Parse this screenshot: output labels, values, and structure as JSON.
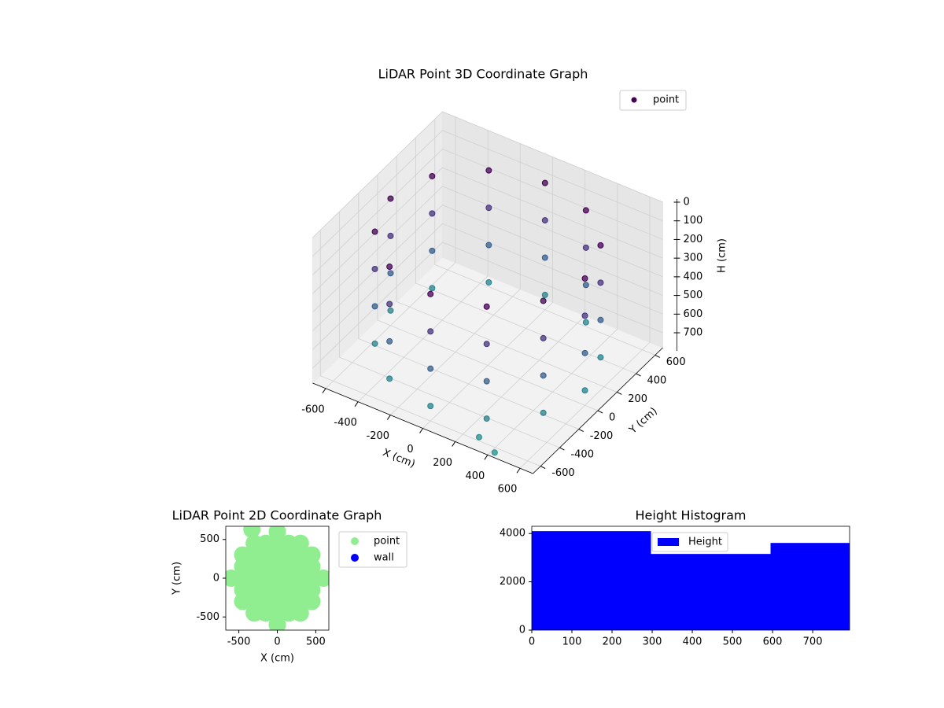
{
  "chart_data": [
    {
      "type": "scatter3d",
      "title": "LiDAR Point 3D Coordinate Graph",
      "x_label": "X (cm)",
      "y_label": "Y (cm)",
      "z_label": "H (cm)",
      "xlim": [
        -680,
        680
      ],
      "ylim": [
        -680,
        680
      ],
      "zlim": [
        0,
        780
      ],
      "z_inverted": true,
      "xticks": [
        -600,
        -400,
        -200,
        0,
        200,
        400,
        600
      ],
      "yticks": [
        -600,
        -400,
        -200,
        0,
        200,
        400,
        600
      ],
      "zticks": [
        0,
        100,
        200,
        300,
        400,
        500,
        600,
        700
      ],
      "colormap": "viridis",
      "legend": "upper right",
      "grid": true,
      "series": [
        {
          "name": "point",
          "color": "#440154",
          "x": [
            600,
            520,
            300,
            0,
            -300,
            -520,
            -600,
            -520,
            -300,
            0,
            300,
            520,
            600,
            520,
            300,
            0,
            -300,
            -520,
            -600,
            -520,
            -300,
            0,
            300,
            520,
            600,
            520,
            300,
            0,
            -300,
            -520,
            -600,
            -520,
            -300,
            0,
            300,
            520,
            600,
            520,
            300,
            0,
            -300,
            -520,
            -600,
            -520,
            -300,
            0,
            300,
            520,
            420,
            300
          ],
          "y": [
            0,
            300,
            520,
            600,
            520,
            300,
            0,
            -300,
            -520,
            -600,
            -520,
            -300,
            0,
            300,
            520,
            600,
            520,
            300,
            0,
            -300,
            -520,
            -600,
            -520,
            -300,
            0,
            300,
            520,
            600,
            520,
            300,
            0,
            -300,
            -520,
            -600,
            -520,
            -300,
            0,
            300,
            520,
            600,
            520,
            300,
            0,
            -300,
            -520,
            -600,
            -520,
            -300,
            -640,
            -600
          ],
          "values": [
            100,
            100,
            100,
            100,
            100,
            100,
            100,
            100,
            100,
            100,
            100,
            100,
            300,
            300,
            300,
            300,
            300,
            300,
            300,
            300,
            300,
            300,
            300,
            300,
            500,
            500,
            500,
            500,
            500,
            500,
            500,
            500,
            500,
            500,
            500,
            500,
            700,
            700,
            700,
            700,
            700,
            700,
            700,
            700,
            700,
            700,
            700,
            700,
            780,
            760
          ]
        }
      ]
    },
    {
      "type": "scatter",
      "title": "LiDAR Point 2D Coordinate Graph",
      "x_label": "X (cm)",
      "y_label": "Y (cm)",
      "xlim": [
        -670,
        670
      ],
      "ylim": [
        -670,
        670
      ],
      "xticks": [
        -500,
        0,
        500
      ],
      "yticks": [
        -500,
        0,
        500
      ],
      "legend": "outside right",
      "series": [
        {
          "name": "point",
          "color": "#90ee90",
          "x": [
            -600,
            -450,
            -300,
            -150,
            0,
            150,
            300,
            450,
            600,
            -450,
            -300,
            -150,
            0,
            150,
            300,
            450,
            -450,
            -300,
            -150,
            0,
            150,
            300,
            450,
            -450,
            -300,
            -150,
            0,
            150,
            300,
            450,
            -450,
            -300,
            -150,
            0,
            150,
            300,
            450,
            -300,
            -150,
            0,
            150,
            300,
            -300,
            -150,
            0,
            150,
            300,
            0,
            0,
            -330
          ],
          "values": [
            0,
            0,
            0,
            0,
            0,
            0,
            0,
            0,
            0,
            150,
            150,
            150,
            150,
            150,
            150,
            150,
            -150,
            -150,
            -150,
            -150,
            -150,
            -150,
            -150,
            300,
            300,
            300,
            300,
            300,
            300,
            300,
            -300,
            -300,
            -300,
            -300,
            -300,
            -300,
            -300,
            450,
            450,
            450,
            450,
            450,
            -450,
            -450,
            -450,
            -450,
            -450,
            600,
            -600,
            630
          ]
        },
        {
          "name": "wall",
          "color": "#0000ff",
          "x": [],
          "values": []
        }
      ]
    },
    {
      "type": "histogram",
      "title": "Height Histogram",
      "bins": [
        0,
        297,
        595,
        792
      ],
      "values": [
        4100,
        3155,
        3610
      ],
      "series_name": "Height",
      "color": "#0000ff",
      "xlim": [
        0,
        792
      ],
      "ylim": [
        0,
        4300
      ],
      "xticks": [
        0,
        100,
        200,
        300,
        400,
        500,
        600,
        700
      ],
      "yticks": [
        0,
        2000,
        4000
      ],
      "legend": "upper center"
    }
  ]
}
